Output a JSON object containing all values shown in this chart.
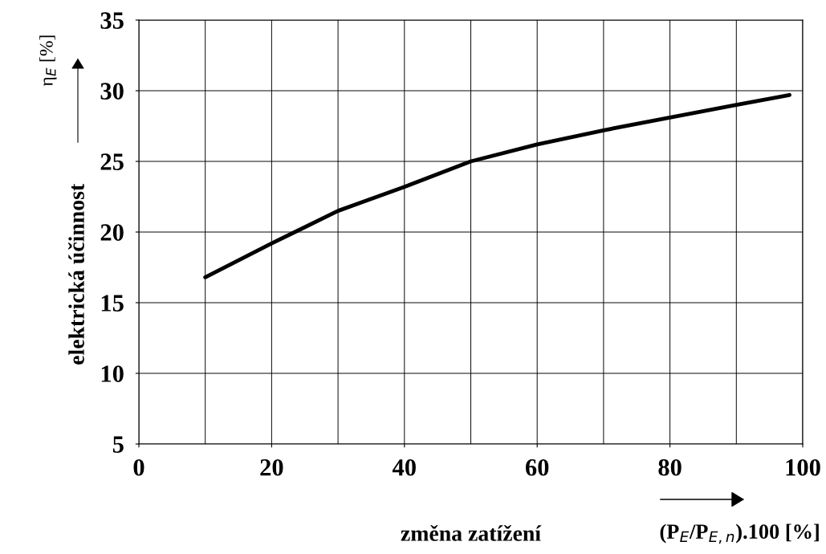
{
  "chart_data": {
    "type": "line",
    "xlabel": "změna zatížení",
    "ylabel": "elektrická účinnost",
    "annotations": [
      "η$_{E}$ [%]",
      "(P$_{E}$/P$_{E,n}$).100 [%]"
    ],
    "x": [
      10,
      20,
      23.5,
      30,
      40,
      50,
      60,
      70,
      80,
      90,
      98
    ],
    "series": [
      {
        "color": "#000000",
        "values": [
          16.8,
          19.2,
          20,
          21.5,
          23.2,
          25,
          26.2,
          27.2,
          28.1,
          29,
          29.7
        ]
      }
    ],
    "xlim": [
      0,
      100
    ],
    "ylim": [
      5,
      35
    ],
    "xticks": [
      0,
      20,
      40,
      60,
      80,
      100
    ],
    "yticks": [
      5,
      10,
      15,
      20,
      25,
      30,
      35
    ],
    "grid": true,
    "marker": "none",
    "line_style": "solid",
    "legend": false
  }
}
